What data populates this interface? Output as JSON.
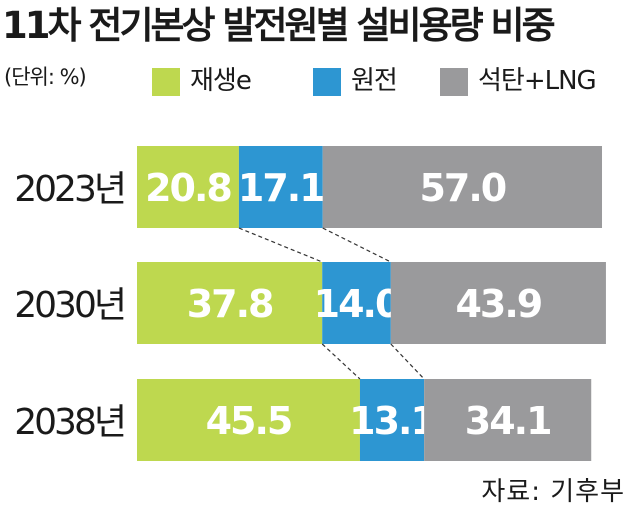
{
  "title": "11차 전기본상 발전원별 설비용량 비중",
  "unit_label": "(단위: %)",
  "source": "자료: 기후부",
  "colors": {
    "renewable": "#bed84f",
    "nuclear": "#2d96d2",
    "coal_lng": "#9a9a9c",
    "text": "#1a1a1a",
    "bar_text": "#ffffff"
  },
  "chart_data": {
    "type": "bar",
    "orientation": "horizontal",
    "stacked": true,
    "title": "11차 전기본상 발전원별 설비용량 비중",
    "unit": "%",
    "categories": [
      "2023년",
      "2030년",
      "2038년"
    ],
    "series": [
      {
        "name": "재생e",
        "color": "#bed84f",
        "values": [
          20.8,
          37.8,
          45.5
        ]
      },
      {
        "name": "원전",
        "color": "#2d96d2",
        "values": [
          17.1,
          14.0,
          13.1
        ]
      },
      {
        "name": "석탄+LNG",
        "color": "#9a9a9c",
        "values": [
          57.0,
          43.9,
          34.1
        ]
      }
    ],
    "data_labels": [
      [
        "20.8",
        "17.1",
        "57.0"
      ],
      [
        "37.8",
        "14.0",
        "43.9"
      ],
      [
        "45.5",
        "13.1",
        "34.1"
      ]
    ],
    "connector_lines": "dashed",
    "legend_position": "top-right",
    "grid": false
  }
}
